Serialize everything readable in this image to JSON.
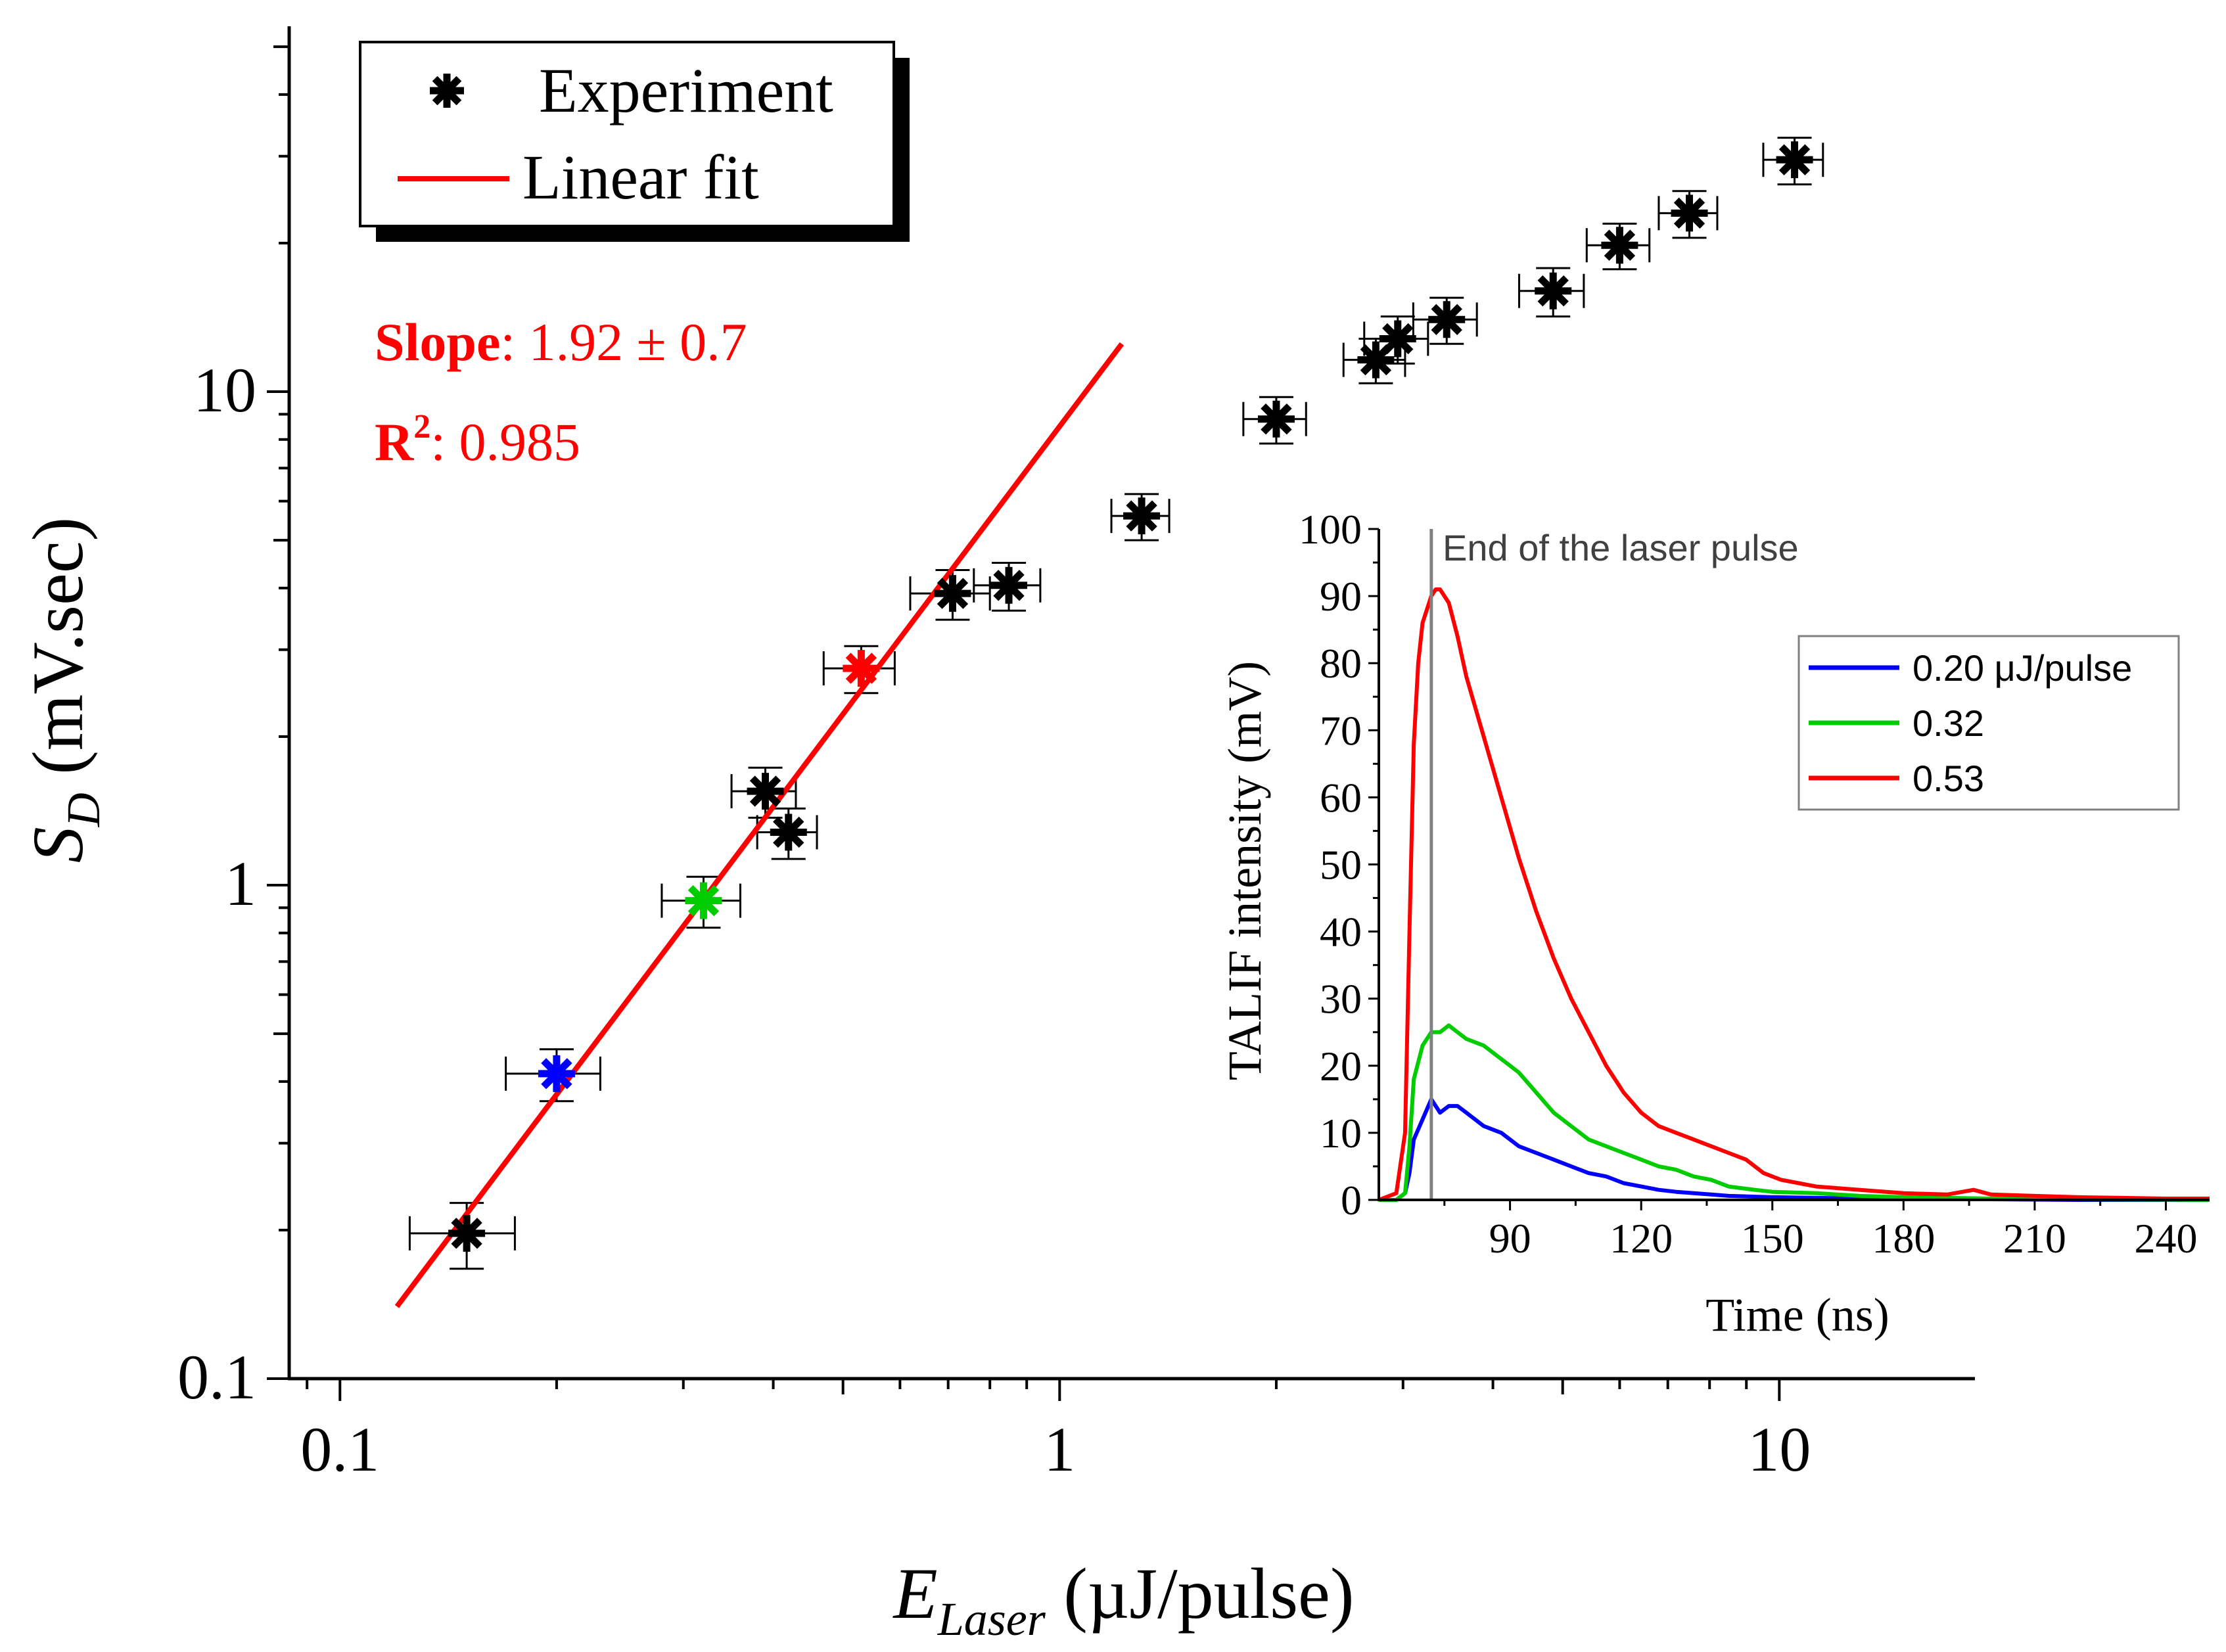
{
  "chart_data": [
    {
      "type": "scatter",
      "scale": "log-log",
      "xlabel_main": "E",
      "xlabel_sub": "Laser",
      "xlabel_unit": " (µJ/pulse)",
      "ylabel_main": "S",
      "ylabel_sub": "D",
      "ylabel_unit": " (mV.sec)",
      "xlim": [
        0.085,
        18.7
      ],
      "ylim": [
        0.1,
        55
      ],
      "x_ticks": [
        0.1,
        1,
        10
      ],
      "x_tick_labels": [
        "0.1",
        "1",
        "10"
      ],
      "y_ticks": [
        0.1,
        1,
        10
      ],
      "y_tick_labels": [
        "0.1",
        "1",
        "10"
      ],
      "legend": {
        "position": "top-left",
        "entries": [
          {
            "label": "Experiment",
            "marker": "asterisk",
            "color": "#000000"
          },
          {
            "label": "Linear fit",
            "marker": "line",
            "color": "#ff0000"
          }
        ]
      },
      "annotations": {
        "slope_label": "Slope",
        "slope_value": ": 1.92 ± 0.7",
        "r2_label": "R",
        "r2_sup": "2",
        "r2_value": ": 0.985",
        "color": "#ff0000"
      },
      "series": [
        {
          "name": "Experiment",
          "marker": "asterisk",
          "points": [
            {
              "x": 0.15,
              "y": 0.197,
              "xerr": 0.025,
              "yerr": 0.03,
              "color": "#000000"
            },
            {
              "x": 0.2,
              "y": 0.415,
              "xerr": 0.03,
              "yerr": 0.05,
              "color": "#0000ff"
            },
            {
              "x": 0.32,
              "y": 0.93,
              "xerr": 0.04,
              "yerr": 0.11,
              "color": "#00cc00"
            },
            {
              "x": 0.39,
              "y": 1.55,
              "xerr": 0.04,
              "yerr": 0.18,
              "color": "#000000"
            },
            {
              "x": 0.42,
              "y": 1.28,
              "xerr": 0.04,
              "yerr": 0.15,
              "color": "#000000"
            },
            {
              "x": 0.53,
              "y": 2.75,
              "xerr": 0.06,
              "yerr": 0.3,
              "color": "#ff0000"
            },
            {
              "x": 0.71,
              "y": 3.9,
              "xerr": 0.09,
              "yerr": 0.45,
              "color": "#000000"
            },
            {
              "x": 0.85,
              "y": 4.05,
              "xerr": 0.09,
              "yerr": 0.45,
              "color": "#000000"
            },
            {
              "x": 1.3,
              "y": 5.6,
              "xerr": 0.12,
              "yerr": 0.6,
              "color": "#000000"
            },
            {
              "x": 2.0,
              "y": 8.8,
              "xerr": 0.2,
              "yerr": 0.95,
              "color": "#000000"
            },
            {
              "x": 2.75,
              "y": 11.6,
              "xerr": 0.27,
              "yerr": 1.2,
              "color": "#000000"
            },
            {
              "x": 2.95,
              "y": 12.8,
              "xerr": 0.3,
              "yerr": 1.4,
              "color": "#000000"
            },
            {
              "x": 3.45,
              "y": 14.0,
              "xerr": 0.35,
              "yerr": 1.5,
              "color": "#000000"
            },
            {
              "x": 4.85,
              "y": 16.0,
              "xerr": 0.5,
              "yerr": 1.8,
              "color": "#000000"
            },
            {
              "x": 6.0,
              "y": 19.8,
              "xerr": 0.6,
              "yerr": 2.1,
              "color": "#000000"
            },
            {
              "x": 7.5,
              "y": 23.0,
              "xerr": 0.7,
              "yerr": 2.5,
              "color": "#000000"
            },
            {
              "x": 10.5,
              "y": 29.5,
              "xerr": 1.0,
              "yerr": 3.2,
              "color": "#000000"
            }
          ]
        },
        {
          "name": "Linear fit",
          "type": "line",
          "color": "#ff0000",
          "x": [
            0.12,
            1.22
          ],
          "y": [
            0.14,
            12.5
          ]
        }
      ]
    },
    {
      "type": "line",
      "title": "End of the laser pulse",
      "xlabel": "Time (ns)",
      "ylabel": "TALIF intensity (mV)",
      "xlim": [
        60,
        250
      ],
      "ylim": [
        0,
        100
      ],
      "x_ticks": [
        90,
        120,
        150,
        180,
        210,
        240
      ],
      "x_tick_labels": [
        "90",
        "120",
        "150",
        "180",
        "210",
        "240"
      ],
      "y_ticks": [
        0,
        10,
        20,
        30,
        40,
        50,
        60,
        70,
        80,
        90,
        100
      ],
      "y_tick_labels": [
        "0",
        "10",
        "20",
        "30",
        "40",
        "50",
        "60",
        "70",
        "80",
        "90",
        "100"
      ],
      "vline_x": 72,
      "vline_color": "#808080",
      "legend": {
        "position": "top-right",
        "entries": [
          {
            "label": "0.20 μJ/pulse",
            "color": "#0000ff"
          },
          {
            "label": "0.32",
            "color": "#00cc00"
          },
          {
            "label": "0.53",
            "color": "#ff0000"
          }
        ]
      },
      "series": [
        {
          "name": "0.20 μJ/pulse",
          "color": "#0000ff",
          "x": [
            60,
            64,
            66,
            67,
            68,
            70,
            72,
            74,
            76,
            78,
            80,
            84,
            88,
            92,
            96,
            100,
            104,
            108,
            112,
            116,
            120,
            124,
            128,
            132,
            136,
            140,
            150,
            160,
            170,
            180,
            200,
            220,
            250
          ],
          "y": [
            0,
            0,
            1,
            4,
            9,
            12,
            15,
            13,
            14,
            14,
            13,
            11,
            10,
            8,
            7,
            6,
            5,
            4,
            3.5,
            2.5,
            2,
            1.5,
            1.2,
            1,
            0.8,
            0.6,
            0.4,
            0.3,
            0.2,
            0.1,
            0.1,
            0,
            0
          ]
        },
        {
          "name": "0.32",
          "color": "#00cc00",
          "x": [
            60,
            64,
            66,
            67,
            68,
            70,
            72,
            74,
            76,
            78,
            80,
            84,
            88,
            92,
            96,
            100,
            104,
            108,
            112,
            116,
            120,
            124,
            128,
            132,
            136,
            140,
            146,
            150,
            160,
            170,
            180,
            200,
            220,
            250
          ],
          "y": [
            0,
            0,
            1,
            8,
            18,
            23,
            25,
            25,
            26,
            25,
            24,
            23,
            21,
            19,
            16,
            13,
            11,
            9,
            8,
            7,
            6,
            5,
            4.5,
            3.5,
            3,
            2,
            1.5,
            1.2,
            1,
            0.6,
            0.4,
            0.2,
            0.1,
            0
          ]
        },
        {
          "name": "0.53",
          "color": "#ff0000",
          "x": [
            60,
            64,
            66,
            67,
            68,
            69,
            70,
            72,
            73,
            74,
            76,
            78,
            80,
            84,
            88,
            92,
            96,
            100,
            104,
            108,
            112,
            116,
            120,
            124,
            128,
            132,
            136,
            140,
            144,
            148,
            152,
            156,
            160,
            170,
            180,
            190,
            196,
            200,
            210,
            220,
            230,
            240,
            250
          ],
          "y": [
            0,
            1,
            10,
            40,
            68,
            80,
            86,
            90,
            91,
            91,
            89,
            84,
            78,
            69,
            60,
            51,
            43,
            36,
            30,
            25,
            20,
            16,
            13,
            11,
            10,
            9,
            8,
            7,
            6,
            4,
            3,
            2.5,
            2,
            1.5,
            1,
            0.8,
            1.5,
            0.8,
            0.6,
            0.4,
            0.3,
            0.2,
            0.2
          ]
        }
      ]
    }
  ]
}
